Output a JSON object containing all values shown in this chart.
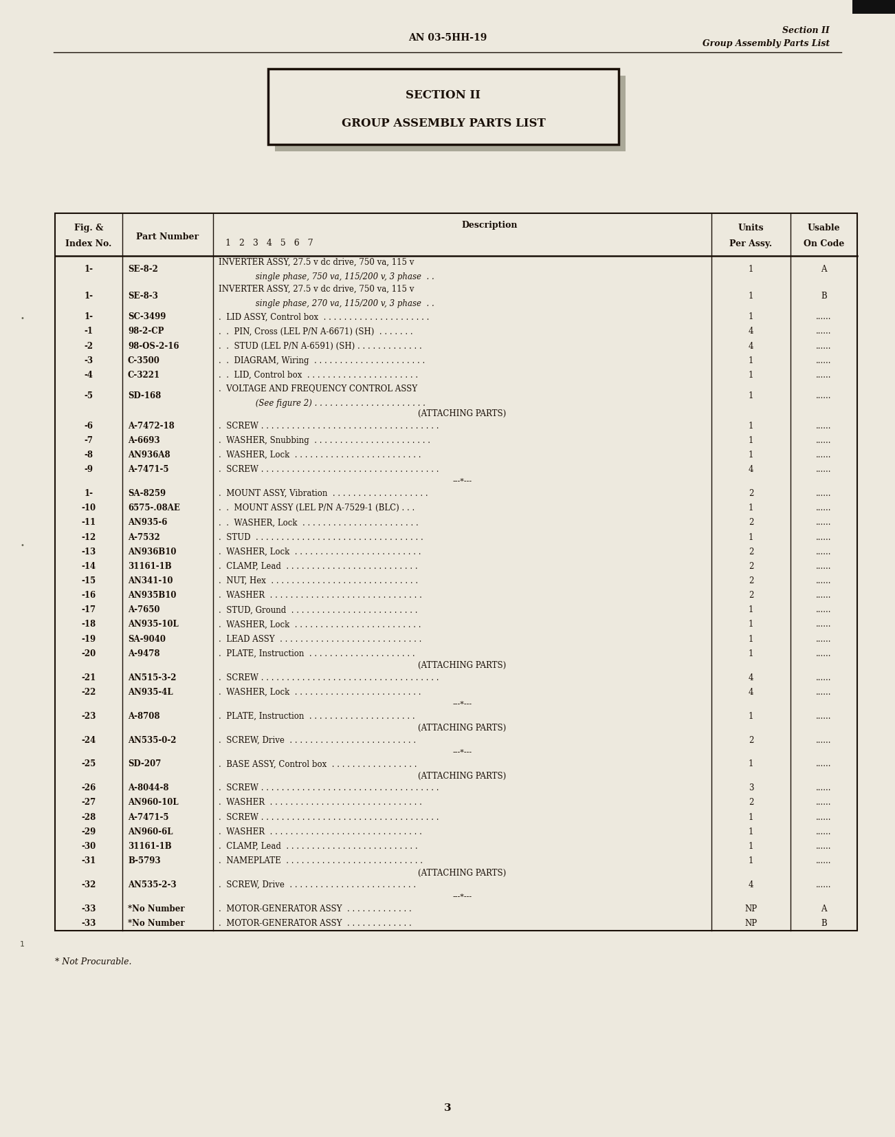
{
  "bg_color": "#e8e4d8",
  "page_color": "#ede9de",
  "header_center": "AN 03-5HH-19",
  "header_right_line1": "Section II",
  "header_right_line2": "Group Assembly Parts List",
  "box_title_line1": "SECTION II",
  "box_title_line2": "GROUP ASSEMBLY PARTS LIST",
  "rows": [
    {
      "fig": "1-",
      "part": "SE-8-2",
      "desc_lines": [
        "INVERTER ASSY, 27.5 v dc drive, 750 va, 115 v",
        "     single phase, 750 va, 115/200 v, 3 phase  . ."
      ],
      "units": "1",
      "usable": "A",
      "double": true
    },
    {
      "fig": "1-",
      "part": "SE-8-3",
      "desc_lines": [
        "INVERTER ASSY, 27.5 v dc drive, 750 va, 115 v",
        "     single phase, 270 va, 115/200 v, 3 phase  . ."
      ],
      "units": "1",
      "usable": "B",
      "double": true
    },
    {
      "fig": "1-",
      "part": "SC-3499",
      "desc_lines": [
        ".  LID ASSY, Control box  . . . . . . . . . . . . . . . . . . . . ."
      ],
      "units": "1",
      "usable": "......",
      "double": false
    },
    {
      "fig": "-1",
      "part": "98-2-CP",
      "desc_lines": [
        ".  .  PIN, Cross (LEL P/N A-6671) (SH)  . . . . . . ."
      ],
      "units": "4",
      "usable": "......",
      "double": false
    },
    {
      "fig": "-2",
      "part": "98-OS-2-16",
      "desc_lines": [
        ".  .  STUD (LEL P/N A-6591) (SH) . . . . . . . . . . . . ."
      ],
      "units": "4",
      "usable": "......",
      "double": false
    },
    {
      "fig": "-3",
      "part": "C-3500",
      "desc_lines": [
        ".  .  DIAGRAM, Wiring  . . . . . . . . . . . . . . . . . . . . . ."
      ],
      "units": "1",
      "usable": "......",
      "double": false
    },
    {
      "fig": "-4",
      "part": "C-3221",
      "desc_lines": [
        ".  .  LID, Control box  . . . . . . . . . . . . . . . . . . . . . ."
      ],
      "units": "1",
      "usable": "......",
      "double": false
    },
    {
      "fig": "-5",
      "part": "SD-168",
      "desc_lines": [
        ".  VOLTAGE AND FREQUENCY CONTROL ASSY",
        "     (See figure 2) . . . . . . . . . . . . . . . . . . . . . ."
      ],
      "units": "1",
      "usable": "......",
      "double": true
    },
    {
      "fig": "",
      "part": "",
      "desc_lines": [
        "(ATTACHING PARTS)"
      ],
      "units": "",
      "usable": "",
      "double": false,
      "special": true
    },
    {
      "fig": "-6",
      "part": "A-7472-18",
      "desc_lines": [
        ".  SCREW . . . . . . . . . . . . . . . . . . . . . . . . . . . . . . . . . . ."
      ],
      "units": "1",
      "usable": "......",
      "double": false
    },
    {
      "fig": "-7",
      "part": "A-6693",
      "desc_lines": [
        ".  WASHER, Snubbing  . . . . . . . . . . . . . . . . . . . . . . ."
      ],
      "units": "1",
      "usable": "......",
      "double": false
    },
    {
      "fig": "-8",
      "part": "AN936A8",
      "desc_lines": [
        ".  WASHER, Lock  . . . . . . . . . . . . . . . . . . . . . . . . ."
      ],
      "units": "1",
      "usable": "......",
      "double": false
    },
    {
      "fig": "-9",
      "part": "A-7471-5",
      "desc_lines": [
        ".  SCREW . . . . . . . . . . . . . . . . . . . . . . . . . . . . . . . . . . ."
      ],
      "units": "4",
      "usable": "......",
      "double": false
    },
    {
      "fig": "",
      "part": "",
      "desc_lines": [
        "---*---"
      ],
      "units": "",
      "usable": "",
      "double": false,
      "special": true
    },
    {
      "fig": "1-",
      "part": "SA-8259",
      "desc_lines": [
        ".  MOUNT ASSY, Vibration  . . . . . . . . . . . . . . . . . . ."
      ],
      "units": "2",
      "usable": "......",
      "double": false
    },
    {
      "fig": "-10",
      "part": "6575-.08AE",
      "desc_lines": [
        ".  .  MOUNT ASSY (LEL P/N A-7529-1 (BLC) . . ."
      ],
      "units": "1",
      "usable": "......",
      "double": false
    },
    {
      "fig": "-11",
      "part": "AN935-6",
      "desc_lines": [
        ".  .  WASHER, Lock  . . . . . . . . . . . . . . . . . . . . . . ."
      ],
      "units": "2",
      "usable": "......",
      "double": false
    },
    {
      "fig": "-12",
      "part": "A-7532",
      "desc_lines": [
        ".  STUD  . . . . . . . . . . . . . . . . . . . . . . . . . . . . . . . . ."
      ],
      "units": "1",
      "usable": "......",
      "double": false
    },
    {
      "fig": "-13",
      "part": "AN936B10",
      "desc_lines": [
        ".  WASHER, Lock  . . . . . . . . . . . . . . . . . . . . . . . . ."
      ],
      "units": "2",
      "usable": "......",
      "double": false
    },
    {
      "fig": "-14",
      "part": "31161-1B",
      "desc_lines": [
        ".  CLAMP, Lead  . . . . . . . . . . . . . . . . . . . . . . . . . ."
      ],
      "units": "2",
      "usable": "......",
      "double": false
    },
    {
      "fig": "-15",
      "part": "AN341-10",
      "desc_lines": [
        ".  NUT, Hex  . . . . . . . . . . . . . . . . . . . . . . . . . . . . ."
      ],
      "units": "2",
      "usable": "......",
      "double": false
    },
    {
      "fig": "-16",
      "part": "AN935B10",
      "desc_lines": [
        ".  WASHER  . . . . . . . . . . . . . . . . . . . . . . . . . . . . . ."
      ],
      "units": "2",
      "usable": "......",
      "double": false
    },
    {
      "fig": "-17",
      "part": "A-7650",
      "desc_lines": [
        ".  STUD, Ground  . . . . . . . . . . . . . . . . . . . . . . . . ."
      ],
      "units": "1",
      "usable": "......",
      "double": false
    },
    {
      "fig": "-18",
      "part": "AN935-10L",
      "desc_lines": [
        ".  WASHER, Lock  . . . . . . . . . . . . . . . . . . . . . . . . ."
      ],
      "units": "1",
      "usable": "......",
      "double": false
    },
    {
      "fig": "-19",
      "part": "SA-9040",
      "desc_lines": [
        ".  LEAD ASSY  . . . . . . . . . . . . . . . . . . . . . . . . . . . ."
      ],
      "units": "1",
      "usable": "......",
      "double": false
    },
    {
      "fig": "-20",
      "part": "A-9478",
      "desc_lines": [
        ".  PLATE, Instruction  . . . . . . . . . . . . . . . . . . . . ."
      ],
      "units": "1",
      "usable": "......",
      "double": false
    },
    {
      "fig": "",
      "part": "",
      "desc_lines": [
        "(ATTACHING PARTS)"
      ],
      "units": "",
      "usable": "",
      "double": false,
      "special": true
    },
    {
      "fig": "-21",
      "part": "AN515-3-2",
      "desc_lines": [
        ".  SCREW . . . . . . . . . . . . . . . . . . . . . . . . . . . . . . . . . . ."
      ],
      "units": "4",
      "usable": "......",
      "double": false
    },
    {
      "fig": "-22",
      "part": "AN935-4L",
      "desc_lines": [
        ".  WASHER, Lock  . . . . . . . . . . . . . . . . . . . . . . . . ."
      ],
      "units": "4",
      "usable": "......",
      "double": false
    },
    {
      "fig": "",
      "part": "",
      "desc_lines": [
        "---*---"
      ],
      "units": "",
      "usable": "",
      "double": false,
      "special": true
    },
    {
      "fig": "-23",
      "part": "A-8708",
      "desc_lines": [
        ".  PLATE, Instruction  . . . . . . . . . . . . . . . . . . . . ."
      ],
      "units": "1",
      "usable": "......",
      "double": false
    },
    {
      "fig": "",
      "part": "",
      "desc_lines": [
        "(ATTACHING PARTS)"
      ],
      "units": "",
      "usable": "",
      "double": false,
      "special": true
    },
    {
      "fig": "-24",
      "part": "AN535-0-2",
      "desc_lines": [
        ".  SCREW, Drive  . . . . . . . . . . . . . . . . . . . . . . . . ."
      ],
      "units": "2",
      "usable": "......",
      "double": false
    },
    {
      "fig": "",
      "part": "",
      "desc_lines": [
        "---*---"
      ],
      "units": "",
      "usable": "",
      "double": false,
      "special": true
    },
    {
      "fig": "-25",
      "part": "SD-207",
      "desc_lines": [
        ".  BASE ASSY, Control box  . . . . . . . . . . . . . . . . ."
      ],
      "units": "1",
      "usable": "......",
      "double": false
    },
    {
      "fig": "",
      "part": "",
      "desc_lines": [
        "(ATTACHING PARTS)"
      ],
      "units": "",
      "usable": "",
      "double": false,
      "special": true
    },
    {
      "fig": "-26",
      "part": "A-8044-8",
      "desc_lines": [
        ".  SCREW . . . . . . . . . . . . . . . . . . . . . . . . . . . . . . . . . . ."
      ],
      "units": "3",
      "usable": "......",
      "double": false
    },
    {
      "fig": "-27",
      "part": "AN960-10L",
      "desc_lines": [
        ".  WASHER  . . . . . . . . . . . . . . . . . . . . . . . . . . . . . ."
      ],
      "units": "2",
      "usable": "......",
      "double": false
    },
    {
      "fig": "-28",
      "part": "A-7471-5",
      "desc_lines": [
        ".  SCREW . . . . . . . . . . . . . . . . . . . . . . . . . . . . . . . . . . ."
      ],
      "units": "1",
      "usable": "......",
      "double": false
    },
    {
      "fig": "-29",
      "part": "AN960-6L",
      "desc_lines": [
        ".  WASHER  . . . . . . . . . . . . . . . . . . . . . . . . . . . . . ."
      ],
      "units": "1",
      "usable": "......",
      "double": false
    },
    {
      "fig": "-30",
      "part": "31161-1B",
      "desc_lines": [
        ".  CLAMP, Lead  . . . . . . . . . . . . . . . . . . . . . . . . . ."
      ],
      "units": "1",
      "usable": "......",
      "double": false
    },
    {
      "fig": "-31",
      "part": "B-5793",
      "desc_lines": [
        ".  NAMEPLATE  . . . . . . . . . . . . . . . . . . . . . . . . . . ."
      ],
      "units": "1",
      "usable": "......",
      "double": false
    },
    {
      "fig": "",
      "part": "",
      "desc_lines": [
        "(ATTACHING PARTS)"
      ],
      "units": "",
      "usable": "",
      "double": false,
      "special": true
    },
    {
      "fig": "-32",
      "part": "AN535-2-3",
      "desc_lines": [
        ".  SCREW, Drive  . . . . . . . . . . . . . . . . . . . . . . . . ."
      ],
      "units": "4",
      "usable": "......",
      "double": false
    },
    {
      "fig": "",
      "part": "",
      "desc_lines": [
        "---*---"
      ],
      "units": "",
      "usable": "",
      "double": false,
      "special": true
    },
    {
      "fig": "-33",
      "part": "*No Number",
      "desc_lines": [
        ".  MOTOR-GENERATOR ASSY  . . . . . . . . . . . . ."
      ],
      "units": "NP",
      "usable": "A",
      "double": false
    },
    {
      "fig": "-33",
      "part": "*No Number",
      "desc_lines": [
        ".  MOTOR-GENERATOR ASSY  . . . . . . . . . . . . ."
      ],
      "units": "NP",
      "usable": "B",
      "double": false
    }
  ],
  "footnote": "* Not Procurable.",
  "page_number": "3",
  "text_color": "#1a1008",
  "line_color": "#1a1008"
}
